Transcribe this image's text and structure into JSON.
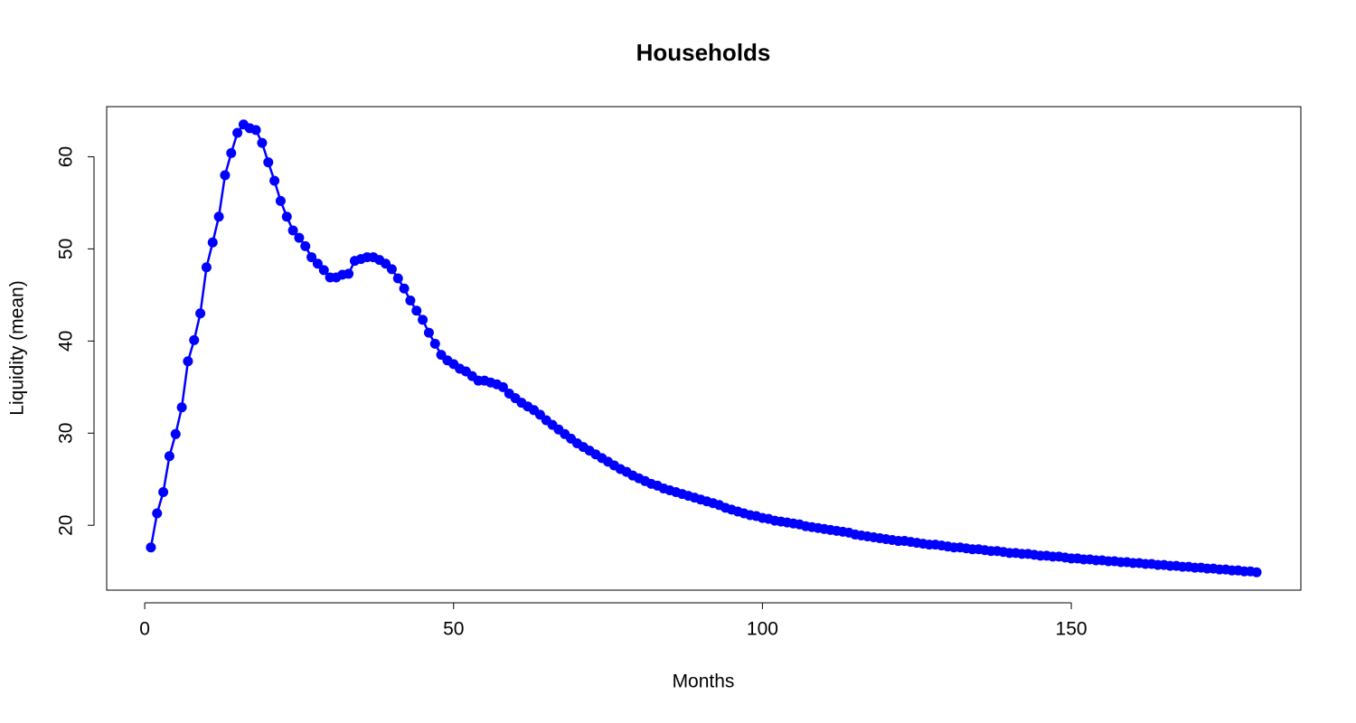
{
  "chart_data": {
    "type": "line",
    "title": "Households",
    "xlabel": "Months",
    "ylabel": "Liquidity (mean)",
    "x": [
      1,
      2,
      3,
      4,
      5,
      6,
      7,
      8,
      9,
      10,
      11,
      12,
      13,
      14,
      15,
      16,
      17,
      18,
      19,
      20,
      21,
      22,
      23,
      24,
      25,
      26,
      27,
      28,
      29,
      30,
      31,
      32,
      33,
      34,
      35,
      36,
      37,
      38,
      39,
      40,
      41,
      42,
      43,
      44,
      45,
      46,
      47,
      48,
      49,
      50,
      51,
      52,
      53,
      54,
      55,
      56,
      57,
      58,
      59,
      60,
      61,
      62,
      63,
      64,
      65,
      66,
      67,
      68,
      69,
      70,
      71,
      72,
      73,
      74,
      75,
      76,
      77,
      78,
      79,
      80,
      81,
      82,
      83,
      84,
      85,
      86,
      87,
      88,
      89,
      90,
      91,
      92,
      93,
      94,
      95,
      96,
      97,
      98,
      99,
      100,
      101,
      102,
      103,
      104,
      105,
      106,
      107,
      108,
      109,
      110,
      111,
      112,
      113,
      114,
      115,
      116,
      117,
      118,
      119,
      120,
      121,
      122,
      123,
      124,
      125,
      126,
      127,
      128,
      129,
      130,
      131,
      132,
      133,
      134,
      135,
      136,
      137,
      138,
      139,
      140,
      141,
      142,
      143,
      144,
      145,
      146,
      147,
      148,
      149,
      150,
      151,
      152,
      153,
      154,
      155,
      156,
      157,
      158,
      159,
      160,
      161,
      162,
      163,
      164,
      165,
      166,
      167,
      168,
      169,
      170,
      171,
      172,
      173,
      174,
      175,
      176,
      177,
      178,
      179,
      180
    ],
    "values": [
      17.6,
      21.3,
      23.6,
      27.5,
      29.9,
      32.8,
      37.8,
      40.1,
      43.0,
      48.0,
      50.7,
      53.5,
      58.0,
      60.4,
      62.6,
      63.5,
      63.1,
      62.9,
      61.5,
      59.4,
      57.4,
      55.2,
      53.5,
      52.0,
      51.2,
      50.3,
      49.1,
      48.4,
      47.7,
      46.9,
      46.9,
      47.2,
      47.3,
      48.7,
      48.9,
      49.1,
      49.1,
      48.8,
      48.4,
      47.8,
      46.8,
      45.7,
      44.4,
      43.3,
      42.3,
      40.9,
      39.7,
      38.5,
      37.9,
      37.5,
      37.0,
      36.7,
      36.2,
      35.7,
      35.7,
      35.5,
      35.3,
      35.0,
      34.3,
      33.8,
      33.3,
      32.9,
      32.5,
      32.0,
      31.4,
      30.9,
      30.4,
      29.9,
      29.4,
      28.9,
      28.5,
      28.1,
      27.7,
      27.3,
      26.9,
      26.5,
      26.1,
      25.8,
      25.4,
      25.1,
      24.8,
      24.5,
      24.3,
      24.0,
      23.8,
      23.6,
      23.4,
      23.2,
      23.0,
      22.8,
      22.6,
      22.4,
      22.2,
      21.9,
      21.7,
      21.5,
      21.3,
      21.1,
      21.0,
      20.8,
      20.7,
      20.5,
      20.4,
      20.3,
      20.2,
      20.1,
      19.9,
      19.8,
      19.7,
      19.6,
      19.5,
      19.4,
      19.3,
      19.2,
      19.0,
      18.9,
      18.8,
      18.7,
      18.6,
      18.5,
      18.4,
      18.3,
      18.3,
      18.2,
      18.1,
      18.0,
      17.9,
      17.9,
      17.8,
      17.7,
      17.6,
      17.6,
      17.5,
      17.4,
      17.4,
      17.3,
      17.2,
      17.2,
      17.1,
      17.0,
      17.0,
      16.9,
      16.9,
      16.8,
      16.7,
      16.7,
      16.6,
      16.6,
      16.5,
      16.4,
      16.4,
      16.3,
      16.3,
      16.2,
      16.2,
      16.1,
      16.1,
      16.0,
      16.0,
      15.9,
      15.9,
      15.8,
      15.8,
      15.7,
      15.7,
      15.6,
      15.6,
      15.5,
      15.5,
      15.4,
      15.4,
      15.3,
      15.3,
      15.2,
      15.2,
      15.1,
      15.1,
      15.0,
      15.0,
      14.9
    ],
    "color": "#0000ff",
    "xlim": [
      -6.16,
      187.16
    ],
    "xticks": [
      0,
      50,
      100,
      150
    ],
    "ylim": [
      12.96,
      65.44
    ],
    "yticks": [
      20,
      30,
      40,
      50,
      60
    ],
    "grid": false
  }
}
